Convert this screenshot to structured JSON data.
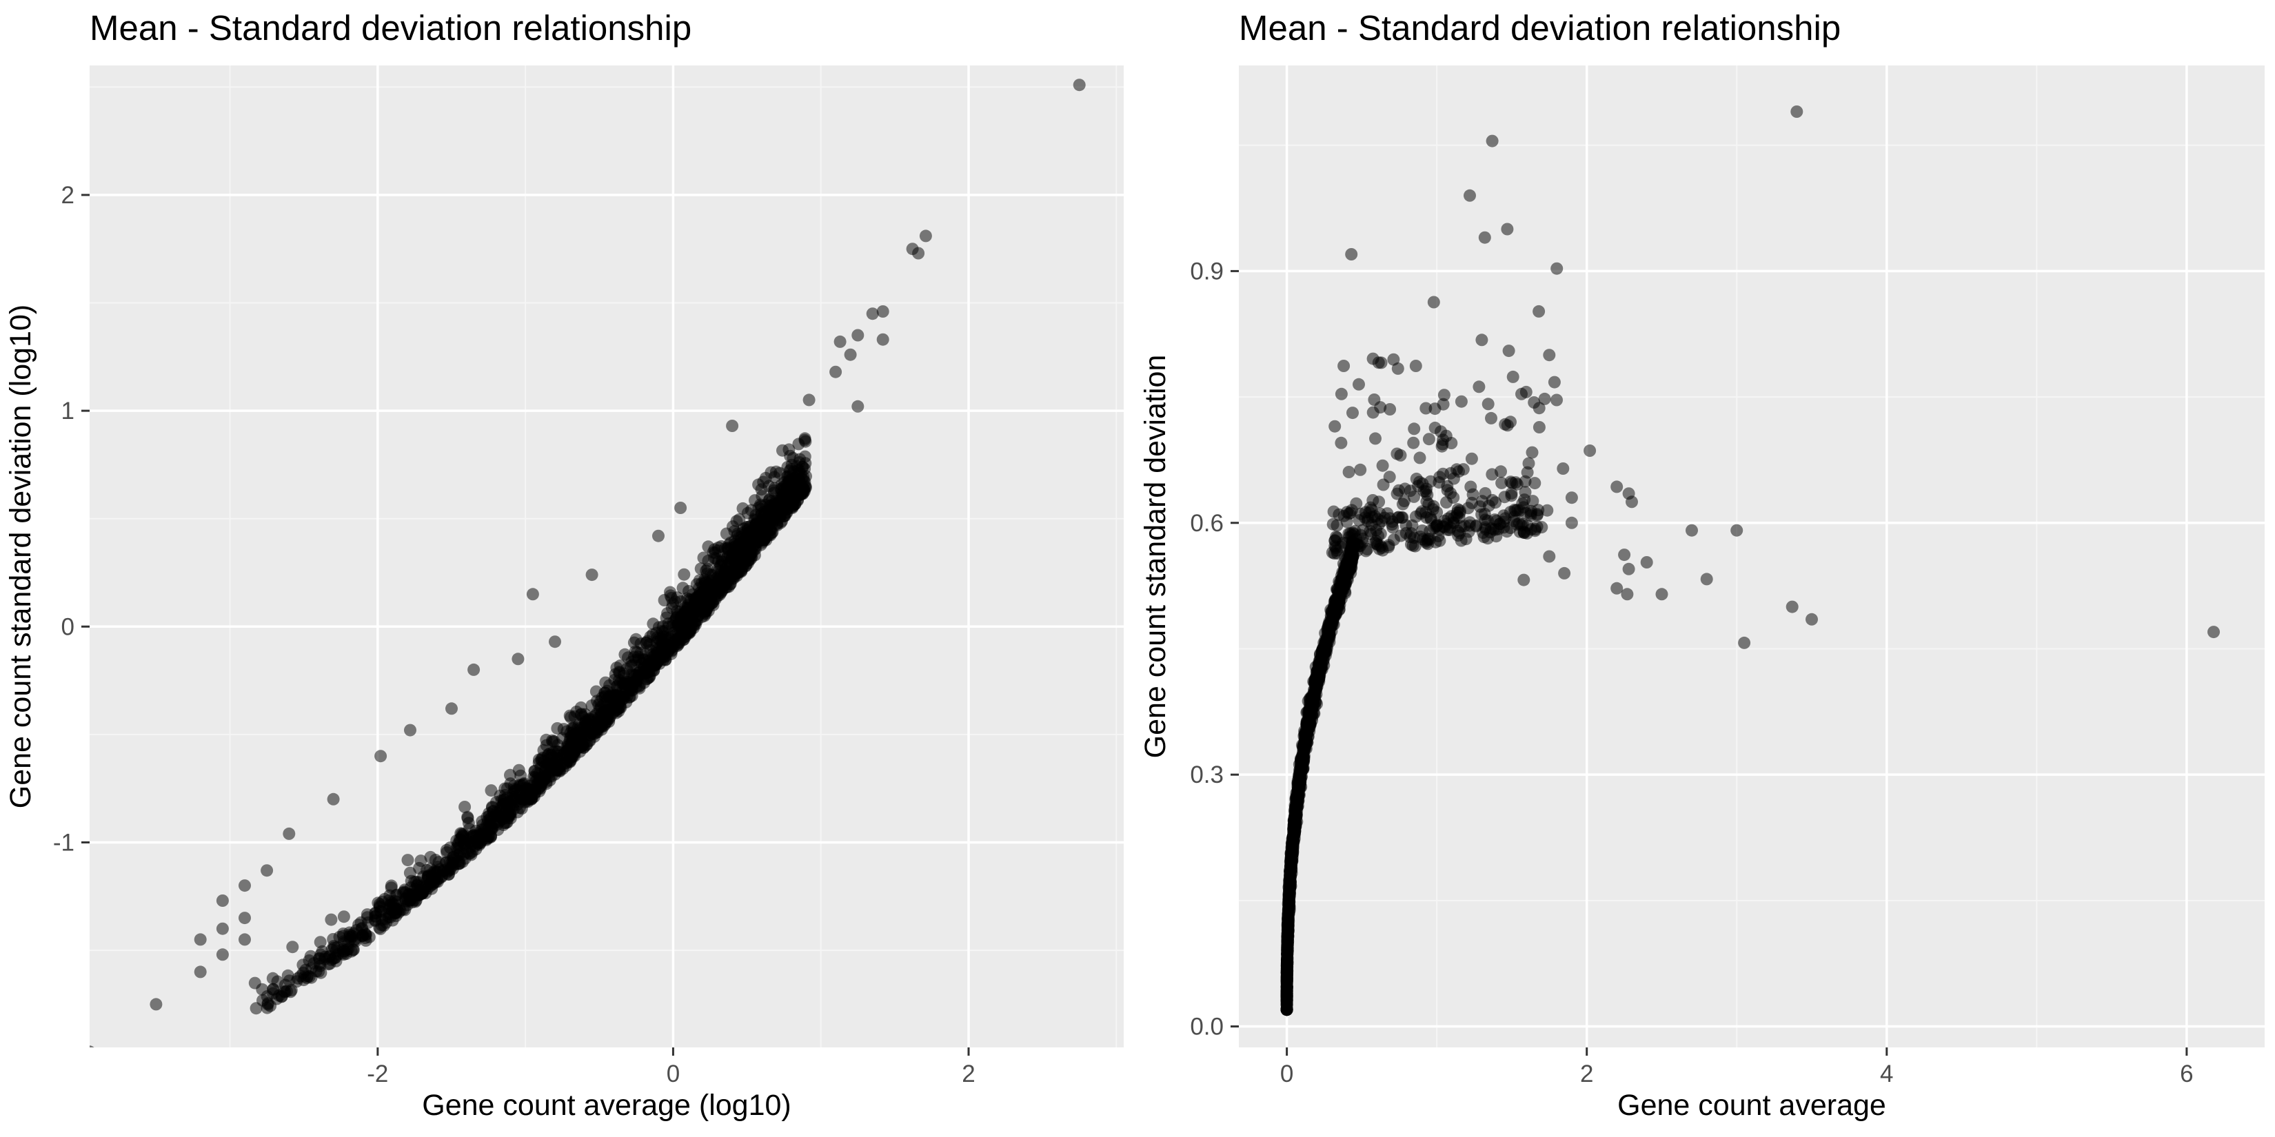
{
  "colors": {
    "panel_background": "#EBEBEB",
    "grid_major": "#FFFFFF",
    "grid_minor": "#F5F5F5",
    "point_fill": "#000000",
    "tick_text": "#4D4D4D",
    "text": "#000000"
  },
  "chart_data": [
    {
      "type": "scatter",
      "title": "Mean - Standard deviation relationship",
      "xlabel": "Gene count average (log10)",
      "ylabel": "Gene count standard deviation (log10)",
      "xlim": [
        -3.95,
        3.05
      ],
      "ylim": [
        -1.95,
        2.6
      ],
      "xticks": [
        -2,
        0,
        2
      ],
      "yticks": [
        -1,
        0,
        1,
        2
      ],
      "grid": true,
      "point_alpha": 0.5,
      "outliers": [
        {
          "x": 2.75,
          "y": 2.51
        },
        {
          "x": 1.71,
          "y": 1.81
        },
        {
          "x": 1.62,
          "y": 1.75
        },
        {
          "x": 1.66,
          "y": 1.73
        },
        {
          "x": 1.42,
          "y": 1.46
        },
        {
          "x": 1.35,
          "y": 1.45
        },
        {
          "x": 1.42,
          "y": 1.33
        },
        {
          "x": 1.25,
          "y": 1.35
        },
        {
          "x": 1.13,
          "y": 1.32
        },
        {
          "x": 1.2,
          "y": 1.26
        },
        {
          "x": 1.1,
          "y": 1.18
        },
        {
          "x": 1.25,
          "y": 1.02
        },
        {
          "x": 0.92,
          "y": 1.05
        },
        {
          "x": 0.4,
          "y": 0.93
        },
        {
          "x": -0.95,
          "y": 0.15
        },
        {
          "x": 0.05,
          "y": 0.55
        },
        {
          "x": -0.1,
          "y": 0.42
        },
        {
          "x": -0.55,
          "y": 0.24
        },
        {
          "x": -1.35,
          "y": -0.2
        },
        {
          "x": -1.05,
          "y": -0.15
        },
        {
          "x": -0.8,
          "y": -0.07
        },
        {
          "x": -1.5,
          "y": -0.38
        },
        {
          "x": -1.78,
          "y": -0.48
        },
        {
          "x": -1.98,
          "y": -0.6
        },
        {
          "x": -2.6,
          "y": -0.96
        },
        {
          "x": -2.3,
          "y": -0.8
        },
        {
          "x": -2.75,
          "y": -1.13
        },
        {
          "x": -2.9,
          "y": -1.2
        },
        {
          "x": -3.05,
          "y": -1.27
        },
        {
          "x": -3.2,
          "y": -1.45
        },
        {
          "x": -3.2,
          "y": -1.6
        },
        {
          "x": -3.05,
          "y": -1.4
        },
        {
          "x": -3.05,
          "y": -1.52
        },
        {
          "x": -2.9,
          "y": -1.35
        },
        {
          "x": -2.9,
          "y": -1.45
        },
        {
          "x": -3.5,
          "y": -1.75
        },
        {
          "x": -3.95,
          "y": -1.97
        }
      ]
    },
    {
      "type": "scatter",
      "title": "Mean - Standard deviation relationship",
      "xlabel": "Gene count average",
      "ylabel": "Gene count standard deviation",
      "xlim": [
        -0.32,
        6.52
      ],
      "ylim": [
        -0.025,
        1.145
      ],
      "xticks": [
        0,
        2,
        4,
        6
      ],
      "yticks": [
        0.0,
        0.3,
        0.6,
        0.9
      ],
      "ytick_labels": [
        "0.0",
        "0.3",
        "0.6",
        "0.9"
      ],
      "grid": true,
      "point_alpha": 0.5,
      "outliers": [
        {
          "x": 3.4,
          "y": 1.09
        },
        {
          "x": 1.37,
          "y": 1.055
        },
        {
          "x": 1.22,
          "y": 0.99
        },
        {
          "x": 1.32,
          "y": 0.94
        },
        {
          "x": 1.47,
          "y": 0.95
        },
        {
          "x": 0.43,
          "y": 0.92
        },
        {
          "x": 1.8,
          "y": 0.903
        },
        {
          "x": 0.98,
          "y": 0.863
        },
        {
          "x": 1.68,
          "y": 0.852
        },
        {
          "x": 1.3,
          "y": 0.818
        },
        {
          "x": 1.48,
          "y": 0.805
        },
        {
          "x": 1.75,
          "y": 0.8
        },
        {
          "x": 0.48,
          "y": 0.765
        },
        {
          "x": 0.32,
          "y": 0.715
        },
        {
          "x": 2.02,
          "y": 0.686
        },
        {
          "x": 2.2,
          "y": 0.643
        },
        {
          "x": 2.28,
          "y": 0.635
        },
        {
          "x": 2.3,
          "y": 0.625
        },
        {
          "x": 1.9,
          "y": 0.63
        },
        {
          "x": 2.7,
          "y": 0.591
        },
        {
          "x": 3.0,
          "y": 0.591
        },
        {
          "x": 2.25,
          "y": 0.562
        },
        {
          "x": 2.4,
          "y": 0.553
        },
        {
          "x": 2.28,
          "y": 0.545
        },
        {
          "x": 2.8,
          "y": 0.533
        },
        {
          "x": 2.2,
          "y": 0.522
        },
        {
          "x": 2.27,
          "y": 0.515
        },
        {
          "x": 2.5,
          "y": 0.515
        },
        {
          "x": 3.37,
          "y": 0.5
        },
        {
          "x": 3.5,
          "y": 0.485
        },
        {
          "x": 3.05,
          "y": 0.457
        },
        {
          "x": 6.18,
          "y": 0.47
        },
        {
          "x": 1.9,
          "y": 0.6
        },
        {
          "x": 1.85,
          "y": 0.54
        },
        {
          "x": 1.58,
          "y": 0.532
        },
        {
          "x": 1.75,
          "y": 0.56
        }
      ]
    }
  ]
}
